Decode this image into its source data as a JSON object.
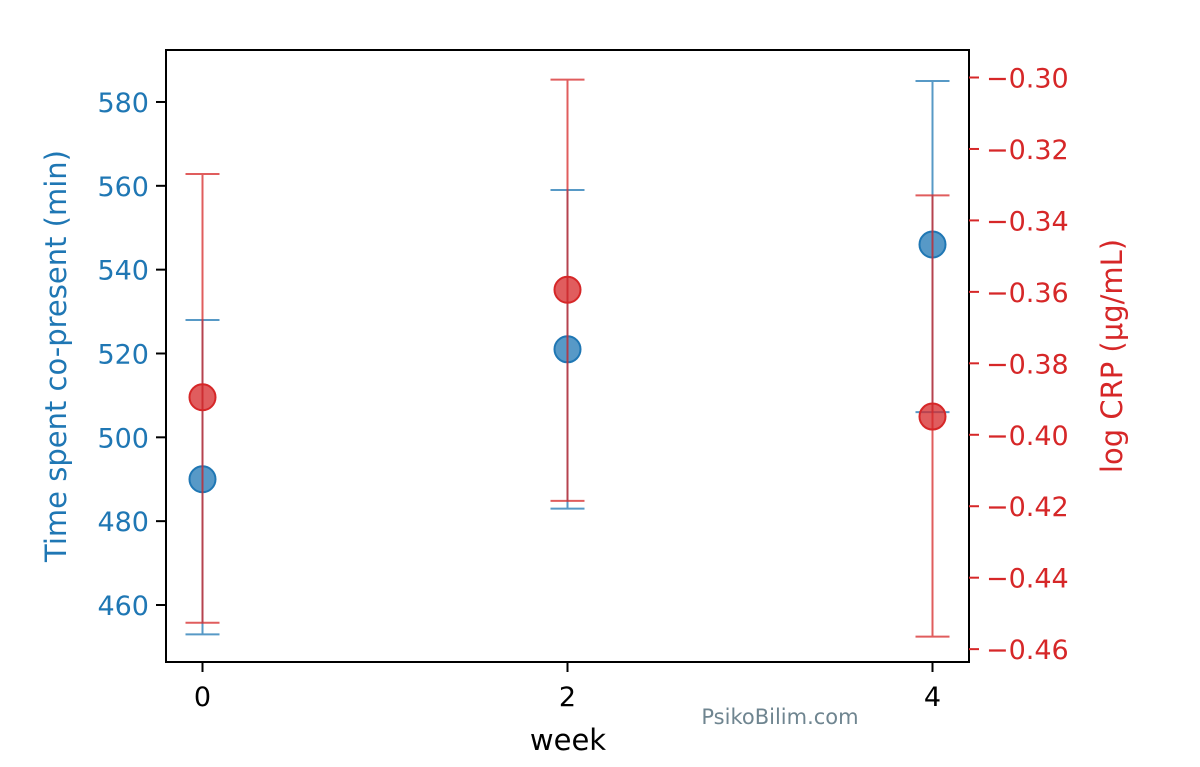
{
  "chart_data": {
    "type": "scatter",
    "xlabel": "week",
    "x_ticks": [
      0,
      2,
      4
    ],
    "x_tick_labels": [
      "0",
      "2",
      "4"
    ],
    "xlim": [
      -0.2,
      4.2
    ],
    "y_left": {
      "label": "Time spent co-present (min)",
      "color": "#1f77b4",
      "ticks": [
        460,
        480,
        500,
        520,
        540,
        560,
        580
      ],
      "tick_labels": [
        "460",
        "480",
        "500",
        "520",
        "540",
        "560",
        "580"
      ],
      "ylim": [
        446.4,
        592.4
      ]
    },
    "y_right": {
      "label": "log CRP (μg/mL)",
      "color": "#d62728",
      "ticks": [
        -0.46,
        -0.44,
        -0.42,
        -0.4,
        -0.38,
        -0.36,
        -0.34,
        -0.32,
        -0.3
      ],
      "tick_labels": [
        "−0.46",
        "−0.44",
        "−0.42",
        "−0.40",
        "−0.38",
        "−0.36",
        "−0.34",
        "−0.32",
        "−0.30"
      ],
      "ylim": [
        -0.4636,
        -0.2923
      ]
    },
    "series": [
      {
        "axis": "left",
        "color": "#1f77b4",
        "points": [
          {
            "x": 0,
            "y": 490,
            "lower": 453,
            "upper": 528
          },
          {
            "x": 2,
            "y": 521,
            "lower": 483,
            "upper": 559
          },
          {
            "x": 4,
            "y": 546,
            "lower": 506,
            "upper": 585
          }
        ]
      },
      {
        "axis": "right",
        "color": "#d62728",
        "points": [
          {
            "x": 0,
            "y": -0.3895,
            "lower": -0.4526,
            "upper": -0.327
          },
          {
            "x": 2,
            "y": -0.3594,
            "lower": -0.4185,
            "upper": -0.3006
          },
          {
            "x": 4,
            "y": -0.3949,
            "lower": -0.4565,
            "upper": -0.333
          }
        ]
      }
    ],
    "grid": false
  },
  "watermark": "PsikoBilim.com"
}
